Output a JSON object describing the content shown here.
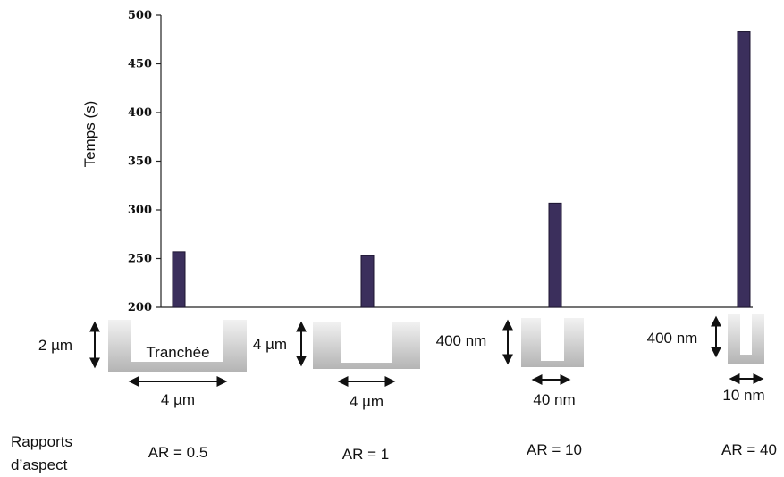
{
  "chart_data": {
    "type": "bar",
    "ylabel": "Temps (s)",
    "ylim": [
      200,
      500
    ],
    "yticks": [
      200,
      250,
      300,
      350,
      400,
      450,
      500
    ],
    "grid": false,
    "legend": "none",
    "series": [
      {
        "values": [
          257,
          253,
          307,
          483
        ]
      }
    ],
    "categories": [
      "AR = 0.5",
      "AR = 1",
      "AR = 10",
      "AR = 40"
    ],
    "bar_color": "#3b2f5c"
  },
  "trenches": [
    {
      "depth": "2 µm",
      "width": "4 µm",
      "name": "Tranchée"
    },
    {
      "depth": "4 µm",
      "width": "4 µm"
    },
    {
      "depth": "400 nm",
      "width": "40 nm"
    },
    {
      "depth": "400 nm",
      "width": "10 nm"
    }
  ],
  "row_label": [
    "Rapports",
    "d’aspect"
  ]
}
